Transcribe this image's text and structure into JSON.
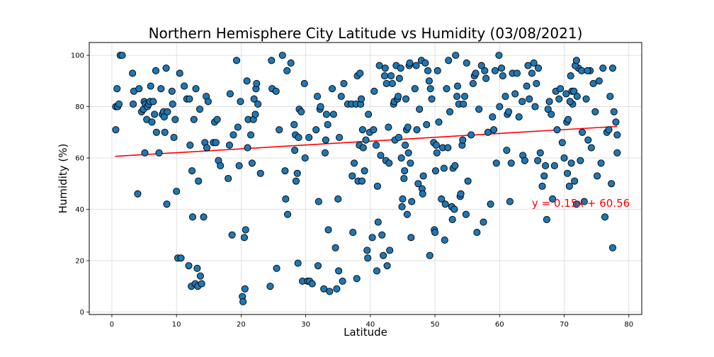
{
  "chart_data": {
    "type": "scatter",
    "title": "Northern Hemisphere City Latitude vs Humidity (03/08/2021)",
    "xlabel": "Latitude",
    "ylabel": "Humidity (%)",
    "xlim": [
      -3.5,
      82
    ],
    "ylim": [
      -1,
      105
    ],
    "xticks": [
      0,
      10,
      20,
      30,
      40,
      50,
      60,
      70,
      80
    ],
    "yticks": [
      0,
      20,
      40,
      60,
      80,
      100
    ],
    "grid": true,
    "marker_color": "#1f77b4",
    "marker_edge_color": "#000000",
    "regression": {
      "equation": "y = 0.15x + 60.56",
      "slope": 0.15,
      "intercept": 60.56,
      "x_range": [
        0.5,
        78.2
      ],
      "color": "#ff0000",
      "label_position": [
        65,
        41
      ]
    },
    "points": [
      [
        0.6,
        71
      ],
      [
        0.6,
        80
      ],
      [
        0.8,
        87
      ],
      [
        0.9,
        80
      ],
      [
        1.1,
        81
      ],
      [
        1.3,
        100
      ],
      [
        1.6,
        100
      ],
      [
        3.2,
        93
      ],
      [
        3.3,
        81
      ],
      [
        3.4,
        86
      ],
      [
        4.0,
        46
      ],
      [
        4.2,
        87
      ],
      [
        4.6,
        78
      ],
      [
        4.9,
        79
      ],
      [
        5.0,
        82
      ],
      [
        5.1,
        62
      ],
      [
        5.2,
        81
      ],
      [
        5.4,
        75
      ],
      [
        5.5,
        80
      ],
      [
        5.7,
        81
      ],
      [
        5.9,
        82
      ],
      [
        6.0,
        88
      ],
      [
        6.2,
        74
      ],
      [
        6.4,
        82
      ],
      [
        6.6,
        77
      ],
      [
        6.8,
        94
      ],
      [
        6.9,
        70
      ],
      [
        7.3,
        62
      ],
      [
        7.6,
        87
      ],
      [
        7.8,
        77
      ],
      [
        8.0,
        78
      ],
      [
        8.1,
        76
      ],
      [
        8.2,
        70
      ],
      [
        8.4,
        95
      ],
      [
        8.5,
        42
      ],
      [
        8.6,
        78
      ],
      [
        9.3,
        86
      ],
      [
        9.4,
        81
      ],
      [
        9.6,
        68
      ],
      [
        9.8,
        75
      ],
      [
        10.0,
        47
      ],
      [
        10.2,
        21
      ],
      [
        10.5,
        93
      ],
      [
        10.7,
        21
      ],
      [
        11.2,
        88
      ],
      [
        11.6,
        83
      ],
      [
        11.9,
        18
      ],
      [
        12.0,
        83
      ],
      [
        12.1,
        65
      ],
      [
        12.3,
        10
      ],
      [
        12.4,
        55
      ],
      [
        12.5,
        37
      ],
      [
        12.7,
        75
      ],
      [
        12.9,
        11
      ],
      [
        13.0,
        87
      ],
      [
        13.2,
        17
      ],
      [
        13.3,
        10
      ],
      [
        13.4,
        51
      ],
      [
        13.6,
        79
      ],
      [
        13.7,
        14
      ],
      [
        13.9,
        11
      ],
      [
        14.2,
        37
      ],
      [
        14.4,
        66
      ],
      [
        14.6,
        84
      ],
      [
        14.7,
        64
      ],
      [
        14.9,
        82
      ],
      [
        15.7,
        66
      ],
      [
        15.9,
        74
      ],
      [
        16.1,
        66
      ],
      [
        16.3,
        75
      ],
      [
        16.5,
        59
      ],
      [
        16.8,
        57
      ],
      [
        18.0,
        52
      ],
      [
        18.2,
        65
      ],
      [
        18.3,
        85
      ],
      [
        18.6,
        30
      ],
      [
        18.8,
        69
      ],
      [
        19.3,
        98
      ],
      [
        19.5,
        72
      ],
      [
        19.7,
        57
      ],
      [
        19.9,
        82
      ],
      [
        20.2,
        6
      ],
      [
        20.3,
        4
      ],
      [
        20.5,
        29
      ],
      [
        20.6,
        9
      ],
      [
        20.7,
        32
      ],
      [
        20.9,
        90
      ],
      [
        21.0,
        64
      ],
      [
        21.1,
        75
      ],
      [
        21.5,
        69
      ],
      [
        21.7,
        58
      ],
      [
        21.9,
        75
      ],
      [
        22.0,
        83
      ],
      [
        22.2,
        77
      ],
      [
        22.3,
        87
      ],
      [
        22.4,
        89
      ],
      [
        22.6,
        81
      ],
      [
        23.0,
        54
      ],
      [
        24.5,
        10
      ],
      [
        24.7,
        98
      ],
      [
        24.8,
        87
      ],
      [
        25.4,
        86
      ],
      [
        25.5,
        17
      ],
      [
        25.9,
        71
      ],
      [
        26.4,
        100
      ],
      [
        26.8,
        55
      ],
      [
        26.9,
        44
      ],
      [
        27.1,
        94
      ],
      [
        27.2,
        38
      ],
      [
        27.7,
        97
      ],
      [
        28.2,
        73
      ],
      [
        28.3,
        63
      ],
      [
        28.4,
        69
      ],
      [
        28.5,
        51
      ],
      [
        28.7,
        54
      ],
      [
        28.8,
        19
      ],
      [
        28.9,
        68
      ],
      [
        29.0,
        79
      ],
      [
        29.3,
        78
      ],
      [
        29.5,
        12
      ],
      [
        29.8,
        89
      ],
      [
        29.9,
        60
      ],
      [
        30.3,
        12
      ],
      [
        30.5,
        68
      ],
      [
        30.6,
        12
      ],
      [
        31.0,
        11
      ],
      [
        31.6,
        71
      ],
      [
        31.8,
        84
      ],
      [
        31.9,
        18
      ],
      [
        32.0,
        43
      ],
      [
        32.2,
        79
      ],
      [
        32.3,
        80
      ],
      [
        32.8,
        9
      ],
      [
        33.0,
        62
      ],
      [
        33.1,
        67
      ],
      [
        33.2,
        77
      ],
      [
        33.4,
        73
      ],
      [
        33.5,
        32
      ],
      [
        33.7,
        8
      ],
      [
        34.1,
        87
      ],
      [
        34.3,
        77
      ],
      [
        34.6,
        25
      ],
      [
        34.8,
        9
      ],
      [
        35.0,
        44
      ],
      [
        35.1,
        16
      ],
      [
        35.2,
        68
      ],
      [
        35.5,
        84
      ],
      [
        35.7,
        12
      ],
      [
        35.9,
        89
      ],
      [
        36.5,
        81
      ],
      [
        37.1,
        81
      ],
      [
        37.2,
        53
      ],
      [
        37.3,
        31
      ],
      [
        37.5,
        58
      ],
      [
        37.8,
        81
      ],
      [
        37.9,
        13
      ],
      [
        38.0,
        92
      ],
      [
        38.1,
        51
      ],
      [
        38.3,
        65
      ],
      [
        38.4,
        93
      ],
      [
        38.5,
        81
      ],
      [
        38.6,
        83
      ],
      [
        38.7,
        51
      ],
      [
        38.8,
        71
      ],
      [
        38.9,
        64
      ],
      [
        39.1,
        55
      ],
      [
        39.3,
        67
      ],
      [
        39.5,
        24
      ],
      [
        39.6,
        21
      ],
      [
        39.7,
        77
      ],
      [
        39.9,
        70
      ],
      [
        40.3,
        29
      ],
      [
        40.5,
        71
      ],
      [
        40.6,
        86
      ],
      [
        40.9,
        65
      ],
      [
        41.0,
        16
      ],
      [
        41.1,
        49
      ],
      [
        41.2,
        35
      ],
      [
        41.4,
        96
      ],
      [
        41.6,
        61
      ],
      [
        41.8,
        30
      ],
      [
        42.0,
        22
      ],
      [
        42.2,
        92
      ],
      [
        42.3,
        95
      ],
      [
        42.4,
        59
      ],
      [
        42.5,
        89
      ],
      [
        42.6,
        18
      ],
      [
        42.8,
        72
      ],
      [
        42.9,
        58
      ],
      [
        43.0,
        24
      ],
      [
        43.2,
        92
      ],
      [
        43.4,
        89
      ],
      [
        43.6,
        81
      ],
      [
        43.7,
        82
      ],
      [
        43.8,
        67
      ],
      [
        44.0,
        96
      ],
      [
        44.2,
        83
      ],
      [
        44.3,
        84
      ],
      [
        44.4,
        68
      ],
      [
        44.5,
        91
      ],
      [
        44.7,
        95
      ],
      [
        44.8,
        60
      ],
      [
        44.9,
        41
      ],
      [
        45.0,
        44
      ],
      [
        45.2,
        52
      ],
      [
        45.3,
        55
      ],
      [
        45.4,
        65
      ],
      [
        45.5,
        83
      ],
      [
        45.6,
        71
      ],
      [
        45.7,
        38
      ],
      [
        45.8,
        72
      ],
      [
        45.9,
        62
      ],
      [
        46.0,
        96
      ],
      [
        46.1,
        97
      ],
      [
        46.2,
        58
      ],
      [
        46.3,
        29
      ],
      [
        46.4,
        43
      ],
      [
        46.9,
        87
      ],
      [
        47.1,
        96
      ],
      [
        47.2,
        71
      ],
      [
        47.4,
        50
      ],
      [
        47.6,
        79
      ],
      [
        47.9,
        98
      ],
      [
        48.0,
        48
      ],
      [
        48.1,
        46
      ],
      [
        48.2,
        53
      ],
      [
        48.5,
        97
      ],
      [
        48.7,
        73
      ],
      [
        48.9,
        94
      ],
      [
        49.1,
        90
      ],
      [
        49.2,
        22
      ],
      [
        49.3,
        87
      ],
      [
        49.5,
        83
      ],
      [
        49.8,
        66
      ],
      [
        49.9,
        32
      ],
      [
        50.0,
        31
      ],
      [
        50.1,
        55
      ],
      [
        50.2,
        65
      ],
      [
        50.3,
        62
      ],
      [
        50.4,
        94
      ],
      [
        50.6,
        74
      ],
      [
        51.0,
        44
      ],
      [
        51.2,
        64
      ],
      [
        51.4,
        56
      ],
      [
        51.5,
        28
      ],
      [
        51.6,
        42
      ],
      [
        51.8,
        87
      ],
      [
        52.0,
        64
      ],
      [
        52.1,
        98
      ],
      [
        52.3,
        78
      ],
      [
        52.6,
        41
      ],
      [
        52.7,
        36
      ],
      [
        52.8,
        56
      ],
      [
        53.0,
        40
      ],
      [
        53.1,
        57
      ],
      [
        53.2,
        100
      ],
      [
        53.4,
        84
      ],
      [
        53.5,
        88
      ],
      [
        53.7,
        81
      ],
      [
        53.9,
        45
      ],
      [
        54.0,
        46
      ],
      [
        54.2,
        65
      ],
      [
        54.3,
        67
      ],
      [
        54.4,
        81
      ],
      [
        54.6,
        84
      ],
      [
        54.8,
        38
      ],
      [
        54.9,
        97
      ],
      [
        55.1,
        51
      ],
      [
        55.6,
        69
      ],
      [
        55.9,
        89
      ],
      [
        56.1,
        92
      ],
      [
        56.3,
        93
      ],
      [
        56.5,
        31
      ],
      [
        56.8,
        79
      ],
      [
        57.2,
        96
      ],
      [
        57.5,
        35
      ],
      [
        57.7,
        94
      ],
      [
        57.9,
        91
      ],
      [
        58.2,
        70
      ],
      [
        58.6,
        42
      ],
      [
        58.9,
        76
      ],
      [
        59.1,
        71
      ],
      [
        59.3,
        94
      ],
      [
        59.5,
        58
      ],
      [
        59.9,
        100
      ],
      [
        60.0,
        80
      ],
      [
        60.3,
        95
      ],
      [
        60.5,
        92
      ],
      [
        60.9,
        84
      ],
      [
        61.1,
        63
      ],
      [
        61.2,
        77
      ],
      [
        61.4,
        78
      ],
      [
        61.6,
        43
      ],
      [
        61.8,
        58
      ],
      [
        62.0,
        93
      ],
      [
        62.4,
        85
      ],
      [
        62.7,
        93
      ],
      [
        63.0,
        76
      ],
      [
        63.5,
        82
      ],
      [
        63.6,
        61
      ],
      [
        63.9,
        59
      ],
      [
        64.2,
        88
      ],
      [
        64.4,
        96
      ],
      [
        64.6,
        83
      ],
      [
        65.0,
        93
      ],
      [
        65.3,
        97
      ],
      [
        65.5,
        80
      ],
      [
        65.7,
        89
      ],
      [
        65.9,
        59
      ],
      [
        66.0,
        95
      ],
      [
        66.3,
        62
      ],
      [
        66.6,
        49
      ],
      [
        66.9,
        53
      ],
      [
        67.1,
        57
      ],
      [
        67.3,
        36
      ],
      [
        67.5,
        79
      ],
      [
        67.7,
        82
      ],
      [
        68.0,
        77
      ],
      [
        68.2,
        44
      ],
      [
        68.5,
        57
      ],
      [
        68.7,
        86
      ],
      [
        68.9,
        71
      ],
      [
        69.2,
        83
      ],
      [
        69.4,
        87
      ],
      [
        69.7,
        66
      ],
      [
        70.0,
        60
      ],
      [
        70.3,
        85
      ],
      [
        70.5,
        54
      ],
      [
        70.8,
        49
      ],
      [
        71.1,
        58
      ],
      [
        71.3,
        81
      ],
      [
        71.6,
        51
      ],
      [
        71.9,
        42
      ],
      [
        72.2,
        95
      ],
      [
        72.5,
        59
      ],
      [
        72.8,
        70
      ],
      [
        73.1,
        43
      ],
      [
        73.4,
        83
      ],
      [
        73.7,
        67
      ],
      [
        74.0,
        94
      ],
      [
        74.2,
        64
      ],
      [
        74.5,
        89
      ],
      [
        74.8,
        78
      ],
      [
        75.1,
        53
      ],
      [
        75.4,
        90
      ],
      [
        75.7,
        58
      ],
      [
        76.0,
        95
      ],
      [
        76.3,
        37
      ],
      [
        76.6,
        70
      ],
      [
        76.9,
        71
      ],
      [
        77.1,
        84
      ],
      [
        77.3,
        50
      ],
      [
        77.5,
        25
      ],
      [
        77.7,
        78
      ],
      [
        78.0,
        74
      ],
      [
        78.2,
        62
      ],
      [
        70.4,
        74
      ],
      [
        70.6,
        75
      ],
      [
        70.9,
        82
      ],
      [
        71.0,
        92
      ],
      [
        71.2,
        86
      ],
      [
        71.5,
        86
      ],
      [
        71.7,
        96
      ],
      [
        71.9,
        98
      ],
      [
        72.0,
        84
      ],
      [
        72.7,
        94
      ],
      [
        73.6,
        94
      ],
      [
        77.5,
        95
      ],
      [
        78.2,
        69
      ]
    ]
  }
}
